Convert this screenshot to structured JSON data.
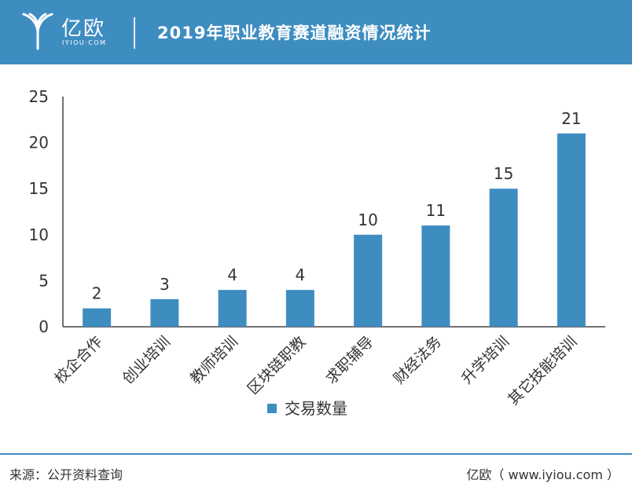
{
  "header": {
    "logo_text": "亿欧",
    "logo_sub": "IYIOU·COM",
    "title": "2019年职业教育赛道融资情况统计"
  },
  "chart_data": {
    "type": "bar",
    "title": "2019年职业教育赛道融资情况统计",
    "categories": [
      "校企合作",
      "创业培训",
      "教师培训",
      "区块链职教",
      "求职辅导",
      "财经法务",
      "升学培训",
      "其它技能培训"
    ],
    "series": [
      {
        "name": "交易数量",
        "values": [
          2,
          3,
          4,
          4,
          10,
          11,
          15,
          21
        ]
      }
    ],
    "yticks": [
      0,
      5,
      10,
      15,
      20,
      25
    ],
    "ylim": [
      0,
      25
    ],
    "xlabel": "",
    "ylabel": "",
    "legend": "bottom-center",
    "bar_color": "#3e8dc1"
  },
  "footer": {
    "source": "来源：公开资料查询",
    "credit": "亿欧（ www.iyiou.com ）"
  }
}
